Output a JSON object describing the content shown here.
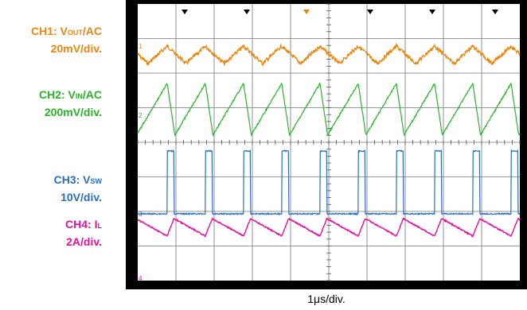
{
  "channels": [
    {
      "prefix": "CH1: V",
      "sub": "OUT",
      "suffix": "/AC",
      "scale": "20mV/div.",
      "color": "#e8870e"
    },
    {
      "prefix": "CH2: V",
      "sub": "IN",
      "suffix": "/AC",
      "scale": "200mV/div.",
      "color": "#2ab22a"
    },
    {
      "prefix": "CH3: V",
      "sub": "SW",
      "suffix": "",
      "scale": "10V/div.",
      "color": "#2a6fc0"
    },
    {
      "prefix": "CH4: I",
      "sub": "L",
      "suffix": "",
      "scale": "2A/div.",
      "color": "#e8109a"
    }
  ],
  "chart_data": {
    "type": "line",
    "xlabel": "1μs/div.",
    "x_divisions": 10,
    "y_divisions": 8,
    "grid": true,
    "switching_period_us": 1.0,
    "vsw_on_time_us": 0.18,
    "series": [
      {
        "name": "CH1: VOUT/AC",
        "color": "#e8870e",
        "waveform": "ripple (rectified triangle)",
        "scale": "20mV/div."
      },
      {
        "name": "CH2: VIN/AC",
        "color": "#2ab22a",
        "waveform": "sawtooth",
        "scale": "200mV/div."
      },
      {
        "name": "CH3: VSW",
        "color": "#2a6fc0",
        "waveform": "pulse",
        "scale": "10V/div."
      },
      {
        "name": "CH4: IL",
        "color": "#e8109a",
        "waveform": "triangle",
        "scale": "2A/div."
      }
    ]
  }
}
